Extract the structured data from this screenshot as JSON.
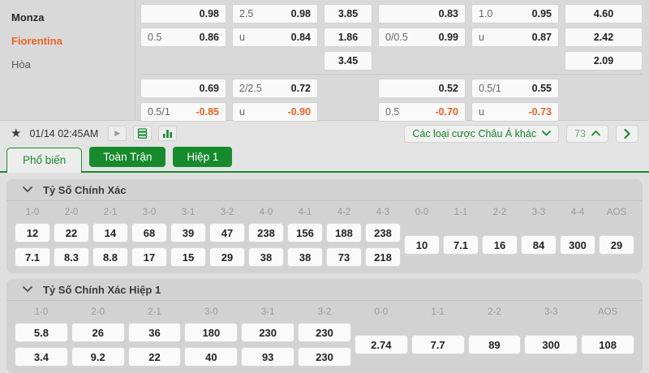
{
  "colors": {
    "green": "#188a2e",
    "orange": "#ee6223"
  },
  "top_board": {
    "teams": [
      {
        "name": "Monza",
        "cls": "team-home"
      },
      {
        "name": "Fiorentina",
        "cls": "team-away"
      },
      {
        "name": "Hòa",
        "cls": "team-draw"
      }
    ],
    "block1": [
      {
        "row": 0,
        "col": 0,
        "label": "",
        "value": "0.98",
        "align": "right"
      },
      {
        "row": 0,
        "col": 1,
        "label": "2.5",
        "value": "0.98",
        "align": "between"
      },
      {
        "row": 0,
        "col": 2,
        "label": "",
        "value": "3.85",
        "align": "center"
      },
      {
        "row": 0,
        "col": 3,
        "label": "",
        "value": "0.83",
        "align": "right"
      },
      {
        "row": 0,
        "col": 4,
        "label": "1.0",
        "value": "0.95",
        "align": "between"
      },
      {
        "row": 0,
        "col": 5,
        "label": "",
        "value": "4.60",
        "align": "center"
      },
      {
        "row": 1,
        "col": 0,
        "label": "0.5",
        "value": "0.86",
        "align": "between"
      },
      {
        "row": 1,
        "col": 1,
        "label": "u",
        "value": "0.84",
        "align": "between"
      },
      {
        "row": 1,
        "col": 2,
        "label": "",
        "value": "1.86",
        "align": "center"
      },
      {
        "row": 1,
        "col": 3,
        "label": "0/0.5",
        "value": "0.99",
        "align": "between"
      },
      {
        "row": 1,
        "col": 4,
        "label": "u",
        "value": "0.87",
        "align": "between"
      },
      {
        "row": 1,
        "col": 5,
        "label": "",
        "value": "2.42",
        "align": "center"
      },
      {
        "row": 2,
        "col": 2,
        "label": "",
        "value": "3.45",
        "align": "center"
      },
      {
        "row": 2,
        "col": 5,
        "label": "",
        "value": "2.09",
        "align": "center"
      }
    ],
    "block2": [
      {
        "row": 0,
        "col": 0,
        "label": "",
        "value": "0.69",
        "align": "right"
      },
      {
        "row": 0,
        "col": 1,
        "label": "2/2.5",
        "value": "0.72",
        "align": "between"
      },
      {
        "row": 0,
        "col": 3,
        "label": "",
        "value": "0.52",
        "align": "right"
      },
      {
        "row": 0,
        "col": 4,
        "label": "0.5/1",
        "value": "0.55",
        "align": "between"
      },
      {
        "row": 1,
        "col": 0,
        "label": "0.5/1",
        "value": "-0.85",
        "align": "between",
        "neg": true
      },
      {
        "row": 1,
        "col": 1,
        "label": "u",
        "value": "-0.90",
        "align": "between",
        "neg": true
      },
      {
        "row": 1,
        "col": 3,
        "label": "0.5",
        "value": "-0.70",
        "align": "between",
        "neg": true
      },
      {
        "row": 1,
        "col": 4,
        "label": "u",
        "value": "-0.73",
        "align": "between",
        "neg": true
      }
    ]
  },
  "toolbar": {
    "star_glyph": "★",
    "kickoff": "01/14 02:45AM",
    "play_glyph": "▶",
    "dropdown_label": "Các loại cược Châu Á khác",
    "market_count": "73"
  },
  "tabs": [
    {
      "label": "Phổ biến",
      "active": true
    },
    {
      "label": "Toàn Trận",
      "active": false
    },
    {
      "label": "Hiệp 1",
      "active": false
    }
  ],
  "sections": [
    {
      "title": "Tỷ Số Chính Xác",
      "columns": [
        {
          "score": "1-0",
          "odds": [
            "12",
            "7.1"
          ]
        },
        {
          "score": "2-0",
          "odds": [
            "22",
            "8.3"
          ]
        },
        {
          "score": "2-1",
          "odds": [
            "14",
            "8.8"
          ]
        },
        {
          "score": "3-0",
          "odds": [
            "68",
            "17"
          ]
        },
        {
          "score": "3-1",
          "odds": [
            "39",
            "15"
          ]
        },
        {
          "score": "3-2",
          "odds": [
            "47",
            "29"
          ]
        },
        {
          "score": "4-0",
          "odds": [
            "238",
            "38"
          ]
        },
        {
          "score": "4-1",
          "odds": [
            "156",
            "38"
          ]
        },
        {
          "score": "4-2",
          "odds": [
            "188",
            "73"
          ]
        },
        {
          "score": "4-3",
          "odds": [
            "238",
            "218"
          ]
        },
        {
          "score": "0-0",
          "odds": [
            "10"
          ]
        },
        {
          "score": "1-1",
          "odds": [
            "7.1"
          ]
        },
        {
          "score": "2-2",
          "odds": [
            "16"
          ]
        },
        {
          "score": "3-3",
          "odds": [
            "84"
          ]
        },
        {
          "score": "4-4",
          "odds": [
            "300"
          ]
        },
        {
          "score": "AOS",
          "odds": [
            "29"
          ]
        }
      ]
    },
    {
      "title": "Tỷ Số Chính Xác Hiệp 1",
      "columns": [
        {
          "score": "1-0",
          "odds": [
            "5.8",
            "3.4"
          ]
        },
        {
          "score": "2-0",
          "odds": [
            "26",
            "9.2"
          ]
        },
        {
          "score": "2-1",
          "odds": [
            "36",
            "22"
          ]
        },
        {
          "score": "3-0",
          "odds": [
            "180",
            "40"
          ]
        },
        {
          "score": "3-1",
          "odds": [
            "230",
            "93"
          ]
        },
        {
          "score": "3-2",
          "odds": [
            "230",
            "230"
          ]
        },
        {
          "score": "0-0",
          "odds": [
            "2.74"
          ]
        },
        {
          "score": "1-1",
          "odds": [
            "7.7"
          ]
        },
        {
          "score": "2-2",
          "odds": [
            "89"
          ]
        },
        {
          "score": "3-3",
          "odds": [
            "300"
          ]
        },
        {
          "score": "AOS",
          "odds": [
            "108"
          ]
        }
      ]
    }
  ]
}
